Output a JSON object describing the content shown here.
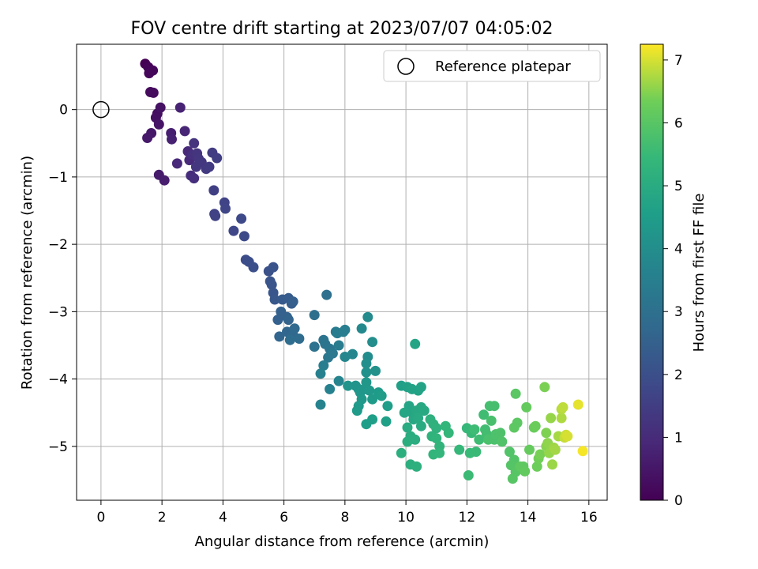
{
  "chart_data": {
    "type": "scatter",
    "title": "FOV centre drift starting at 2023/07/07 04:05:02",
    "xlabel": "Angular distance from reference (arcmin)",
    "ylabel": "Rotation from reference (arcmin)",
    "xlim": [
      -0.8,
      16.6
    ],
    "ylim": [
      -5.8,
      0.97
    ],
    "xticks": [
      0,
      2,
      4,
      6,
      8,
      10,
      12,
      14,
      16
    ],
    "yticks": [
      0,
      -1,
      -2,
      -3,
      -4,
      -5
    ],
    "ytick_labels": [
      "0",
      "−1",
      "−2",
      "−3",
      "−4",
      "−5"
    ],
    "grid": true,
    "legend": {
      "position": "top-right",
      "entries": [
        "Reference platepar"
      ]
    },
    "reference_point": {
      "x": 0,
      "y": 0,
      "name": "Reference platepar"
    },
    "colorbar": {
      "label": "Hours from first FF file",
      "colormap": "viridis",
      "range": [
        0,
        7.25
      ],
      "ticks": [
        0,
        1,
        2,
        3,
        4,
        5,
        6,
        7
      ]
    },
    "points": [
      [
        1.45,
        0.68,
        0.0
      ],
      [
        1.55,
        0.63,
        0.05
      ],
      [
        1.6,
        0.56,
        0.1
      ],
      [
        1.7,
        0.58,
        0.12
      ],
      [
        1.58,
        0.54,
        0.15
      ],
      [
        1.62,
        0.26,
        0.2
      ],
      [
        1.72,
        0.25,
        0.25
      ],
      [
        1.85,
        -0.06,
        0.3
      ],
      [
        1.8,
        -0.12,
        0.35
      ],
      [
        1.95,
        0.03,
        0.4
      ],
      [
        1.9,
        -0.22,
        0.45
      ],
      [
        1.65,
        -0.35,
        0.5
      ],
      [
        1.52,
        -0.42,
        0.55
      ],
      [
        1.9,
        -0.97,
        0.6
      ],
      [
        2.08,
        -1.05,
        0.65
      ],
      [
        2.3,
        -0.35,
        0.7
      ],
      [
        2.32,
        -0.44,
        0.75
      ],
      [
        2.6,
        0.03,
        0.8
      ],
      [
        2.75,
        -0.32,
        0.85
      ],
      [
        2.5,
        -0.8,
        0.9
      ],
      [
        2.85,
        -0.62,
        0.95
      ],
      [
        2.9,
        -0.75,
        1.0
      ],
      [
        2.95,
        -0.98,
        1.05
      ],
      [
        3.05,
        -1.02,
        1.1
      ],
      [
        3.0,
        -0.67,
        1.15
      ],
      [
        3.05,
        -0.5,
        1.2
      ],
      [
        3.15,
        -0.65,
        1.25
      ],
      [
        3.2,
        -0.73,
        1.28
      ],
      [
        3.12,
        -0.85,
        1.3
      ],
      [
        3.3,
        -0.78,
        1.35
      ],
      [
        3.45,
        -0.88,
        1.38
      ],
      [
        3.55,
        -0.85,
        1.42
      ],
      [
        3.65,
        -0.64,
        1.45
      ],
      [
        3.8,
        -0.72,
        1.5
      ],
      [
        3.7,
        -1.2,
        1.55
      ],
      [
        3.72,
        -1.55,
        1.6
      ],
      [
        3.75,
        -1.58,
        1.62
      ],
      [
        4.05,
        -1.38,
        1.65
      ],
      [
        4.08,
        -1.47,
        1.7
      ],
      [
        4.35,
        -1.8,
        1.75
      ],
      [
        4.6,
        -1.62,
        1.8
      ],
      [
        4.7,
        -1.88,
        1.85
      ],
      [
        4.75,
        -2.23,
        1.9
      ],
      [
        4.85,
        -2.26,
        1.95
      ],
      [
        5.0,
        -2.34,
        2.0
      ],
      [
        5.5,
        -2.4,
        2.05
      ],
      [
        5.65,
        -2.34,
        2.1
      ],
      [
        5.55,
        -2.55,
        2.12
      ],
      [
        5.6,
        -2.6,
        2.15
      ],
      [
        5.65,
        -2.72,
        2.2
      ],
      [
        5.7,
        -2.82,
        2.25
      ],
      [
        5.95,
        -2.82,
        2.3
      ],
      [
        6.15,
        -2.8,
        2.35
      ],
      [
        6.25,
        -2.88,
        2.4
      ],
      [
        6.3,
        -2.85,
        2.45
      ],
      [
        5.9,
        -3.0,
        2.5
      ],
      [
        5.8,
        -3.12,
        2.52
      ],
      [
        6.1,
        -3.08,
        2.55
      ],
      [
        6.15,
        -3.12,
        2.6
      ],
      [
        5.85,
        -3.37,
        2.65
      ],
      [
        6.1,
        -3.3,
        2.7
      ],
      [
        6.3,
        -3.35,
        2.75
      ],
      [
        6.35,
        -3.25,
        2.8
      ],
      [
        6.5,
        -3.4,
        2.85
      ],
      [
        6.2,
        -3.42,
        2.9
      ],
      [
        7.0,
        -3.05,
        2.95
      ],
      [
        7.4,
        -2.75,
        3.0
      ],
      [
        7.0,
        -3.52,
        3.05
      ],
      [
        7.3,
        -3.42,
        3.1
      ],
      [
        7.35,
        -3.48,
        3.15
      ],
      [
        7.5,
        -3.55,
        3.2
      ],
      [
        7.45,
        -3.68,
        3.25
      ],
      [
        7.6,
        -3.62,
        3.3
      ],
      [
        7.7,
        -3.3,
        3.35
      ],
      [
        7.75,
        -3.32,
        3.38
      ],
      [
        7.8,
        -3.5,
        3.4
      ],
      [
        7.95,
        -3.3,
        3.45
      ],
      [
        8.0,
        -3.27,
        3.48
      ],
      [
        7.3,
        -3.8,
        3.5
      ],
      [
        7.2,
        -3.92,
        3.55
      ],
      [
        7.5,
        -4.15,
        3.6
      ],
      [
        7.2,
        -4.38,
        3.65
      ],
      [
        7.8,
        -4.03,
        3.7
      ],
      [
        8.0,
        -3.67,
        3.75
      ],
      [
        8.25,
        -3.63,
        3.8
      ],
      [
        8.55,
        -3.25,
        3.85
      ],
      [
        8.75,
        -3.08,
        3.9
      ],
      [
        8.75,
        -3.67,
        3.95
      ],
      [
        8.9,
        -3.45,
        4.0
      ],
      [
        8.7,
        -3.77,
        4.05
      ],
      [
        8.7,
        -3.9,
        4.1
      ],
      [
        9.0,
        -3.88,
        4.15
      ],
      [
        8.1,
        -4.1,
        4.2
      ],
      [
        8.35,
        -4.1,
        4.22
      ],
      [
        8.45,
        -4.15,
        4.25
      ],
      [
        8.5,
        -4.2,
        4.28
      ],
      [
        8.65,
        -4.15,
        4.3
      ],
      [
        8.7,
        -4.05,
        4.32
      ],
      [
        8.8,
        -4.17,
        4.35
      ],
      [
        8.55,
        -4.3,
        4.38
      ],
      [
        8.45,
        -4.4,
        4.4
      ],
      [
        8.4,
        -4.47,
        4.42
      ],
      [
        8.9,
        -4.3,
        4.45
      ],
      [
        9.1,
        -4.2,
        4.48
      ],
      [
        9.2,
        -4.25,
        4.5
      ],
      [
        9.4,
        -4.4,
        4.52
      ],
      [
        8.7,
        -4.67,
        4.55
      ],
      [
        8.9,
        -4.6,
        4.58
      ],
      [
        9.35,
        -4.63,
        4.6
      ],
      [
        9.85,
        -4.1,
        4.62
      ],
      [
        10.05,
        -4.12,
        4.65
      ],
      [
        10.2,
        -4.15,
        4.68
      ],
      [
        10.4,
        -4.17,
        4.7
      ],
      [
        10.5,
        -4.12,
        4.72
      ],
      [
        10.3,
        -3.48,
        4.75
      ],
      [
        10.1,
        -4.4,
        4.78
      ],
      [
        10.2,
        -4.5,
        4.8
      ],
      [
        9.95,
        -4.5,
        4.82
      ],
      [
        10.25,
        -4.6,
        4.85
      ],
      [
        10.35,
        -4.47,
        4.88
      ],
      [
        10.5,
        -4.42,
        4.9
      ],
      [
        10.6,
        -4.47,
        4.92
      ],
      [
        10.4,
        -4.58,
        4.95
      ],
      [
        10.5,
        -4.7,
        4.98
      ],
      [
        10.05,
        -4.72,
        5.0
      ],
      [
        10.15,
        -4.85,
        5.02
      ],
      [
        10.3,
        -4.9,
        5.05
      ],
      [
        10.05,
        -4.93,
        5.08
      ],
      [
        9.85,
        -5.1,
        5.1
      ],
      [
        10.15,
        -5.27,
        5.12
      ],
      [
        10.35,
        -5.3,
        5.15
      ],
      [
        10.8,
        -4.6,
        5.18
      ],
      [
        10.9,
        -4.67,
        5.2
      ],
      [
        11.0,
        -4.73,
        5.22
      ],
      [
        10.85,
        -4.85,
        5.25
      ],
      [
        11.0,
        -4.88,
        5.28
      ],
      [
        11.1,
        -5.0,
        5.3
      ],
      [
        10.9,
        -5.12,
        5.32
      ],
      [
        11.1,
        -5.1,
        5.35
      ],
      [
        11.3,
        -4.7,
        5.38
      ],
      [
        11.4,
        -4.8,
        5.4
      ],
      [
        11.75,
        -5.05,
        5.42
      ],
      [
        12.0,
        -4.73,
        5.45
      ],
      [
        12.15,
        -4.8,
        5.48
      ],
      [
        12.1,
        -5.1,
        5.5
      ],
      [
        12.3,
        -5.08,
        5.52
      ],
      [
        12.05,
        -5.43,
        5.55
      ],
      [
        12.25,
        -4.75,
        5.58
      ],
      [
        12.4,
        -4.9,
        5.6
      ],
      [
        12.55,
        -4.53,
        5.62
      ],
      [
        12.6,
        -4.75,
        5.65
      ],
      [
        12.65,
        -4.82,
        5.68
      ],
      [
        12.75,
        -4.4,
        5.7
      ],
      [
        12.9,
        -4.4,
        5.72
      ],
      [
        12.8,
        -4.62,
        5.75
      ],
      [
        12.7,
        -4.9,
        5.78
      ],
      [
        12.9,
        -4.9,
        5.8
      ],
      [
        12.95,
        -4.82,
        5.82
      ],
      [
        13.1,
        -4.8,
        5.85
      ],
      [
        13.15,
        -4.93,
        5.88
      ],
      [
        13.4,
        -5.08,
        5.9
      ],
      [
        13.55,
        -5.2,
        5.92
      ],
      [
        13.45,
        -5.28,
        5.95
      ],
      [
        13.6,
        -5.38,
        5.98
      ],
      [
        13.5,
        -5.48,
        6.0
      ],
      [
        13.6,
        -4.22,
        6.02
      ],
      [
        13.65,
        -4.65,
        6.05
      ],
      [
        13.55,
        -4.72,
        6.08
      ],
      [
        13.75,
        -5.3,
        6.1
      ],
      [
        13.85,
        -5.3,
        6.12
      ],
      [
        13.9,
        -5.37,
        6.15
      ],
      [
        13.95,
        -4.42,
        6.18
      ],
      [
        14.05,
        -5.05,
        6.2
      ],
      [
        14.2,
        -4.72,
        6.25
      ],
      [
        14.25,
        -4.7,
        6.28
      ],
      [
        14.3,
        -5.3,
        6.3
      ],
      [
        14.35,
        -5.18,
        6.35
      ],
      [
        14.4,
        -5.12,
        6.4
      ],
      [
        14.55,
        -4.12,
        6.42
      ],
      [
        14.6,
        -4.8,
        6.45
      ],
      [
        14.6,
        -5.0,
        6.5
      ],
      [
        14.65,
        -4.95,
        6.55
      ],
      [
        14.7,
        -5.1,
        6.58
      ],
      [
        14.75,
        -4.58,
        6.6
      ],
      [
        14.8,
        -5.27,
        6.62
      ],
      [
        14.85,
        -5.02,
        6.65
      ],
      [
        14.9,
        -5.05,
        6.68
      ],
      [
        15.0,
        -4.85,
        6.7
      ],
      [
        15.1,
        -4.58,
        6.75
      ],
      [
        15.1,
        -4.45,
        6.8
      ],
      [
        15.15,
        -4.42,
        6.85
      ],
      [
        15.2,
        -4.87,
        6.9
      ],
      [
        15.25,
        -4.83,
        6.95
      ],
      [
        15.3,
        -4.85,
        7.0
      ],
      [
        15.65,
        -4.38,
        7.1
      ],
      [
        15.8,
        -5.07,
        7.2
      ]
    ]
  }
}
